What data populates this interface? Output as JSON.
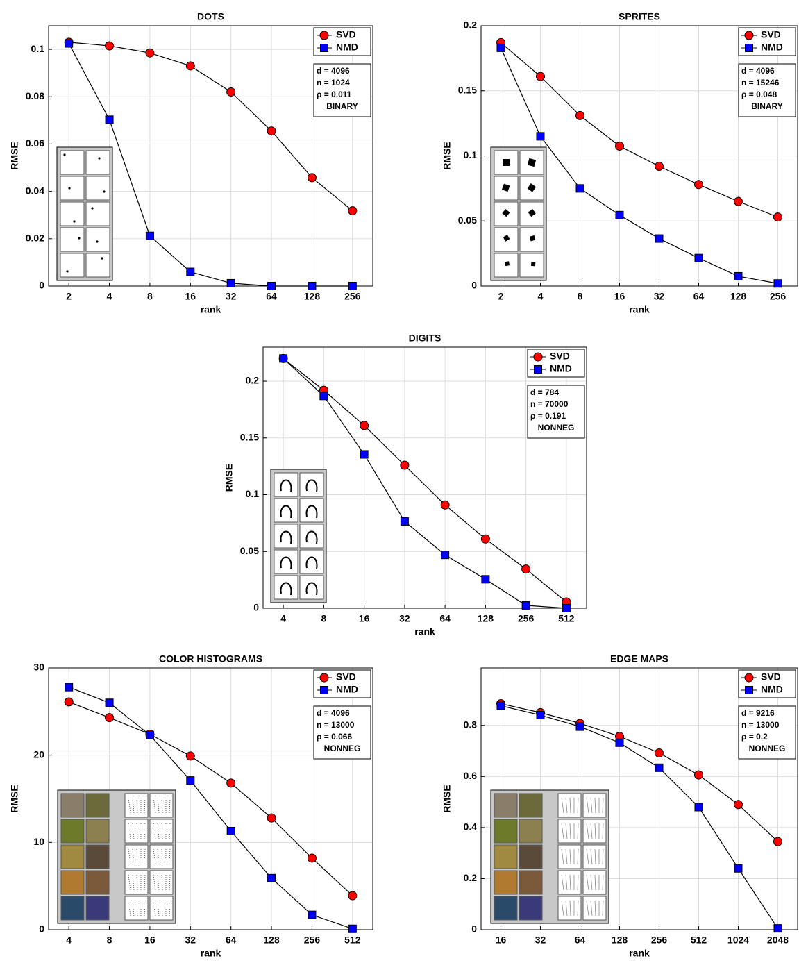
{
  "chart_data": [
    {
      "type": "line",
      "title": "DOTS",
      "xlabel": "rank",
      "ylabel": "RMSE",
      "categories": [
        "2",
        "4",
        "8",
        "16",
        "32",
        "64",
        "128",
        "256"
      ],
      "series": [
        {
          "name": "SVD",
          "color": "#ff0000",
          "marker": "circle",
          "values": [
            0.103,
            0.1015,
            0.0985,
            0.093,
            0.082,
            0.0655,
            0.0458,
            0.0318
          ]
        },
        {
          "name": "NMD",
          "color": "#0000ff",
          "marker": "square",
          "values": [
            0.1025,
            0.0703,
            0.0212,
            0.006,
            0.0012,
            0,
            0,
            0
          ]
        }
      ],
      "ylim": [
        0,
        0.11
      ],
      "yticks": [
        0,
        0.02,
        0.04,
        0.06,
        0.08,
        0.1
      ],
      "grid": true,
      "legend": "upper-right",
      "annotations": [
        "d = 4096",
        "n = 1024",
        "ρ = 0.011",
        "BINARY"
      ],
      "annotation_colors": [
        "#000000",
        "#000000",
        "#000000",
        "#800080"
      ]
    },
    {
      "type": "line",
      "title": "SPRITES",
      "xlabel": "rank",
      "ylabel": "RMSE",
      "categories": [
        "2",
        "4",
        "8",
        "16",
        "32",
        "64",
        "128",
        "256"
      ],
      "series": [
        {
          "name": "SVD",
          "color": "#ff0000",
          "marker": "circle",
          "values": [
            0.187,
            0.161,
            0.131,
            0.1075,
            0.092,
            0.078,
            0.065,
            0.053
          ]
        },
        {
          "name": "NMD",
          "color": "#0000ff",
          "marker": "square",
          "values": [
            0.183,
            0.115,
            0.075,
            0.0545,
            0.0365,
            0.0215,
            0.0075,
            0.002
          ]
        }
      ],
      "ylim": [
        0,
        0.2
      ],
      "yticks": [
        0,
        0.05,
        0.1,
        0.15,
        0.2
      ],
      "grid": true,
      "legend": "upper-right",
      "annotations": [
        "d = 4096",
        "n = 15246",
        "ρ = 0.048",
        "BINARY"
      ],
      "annotation_colors": [
        "#000000",
        "#000000",
        "#000000",
        "#800080"
      ]
    },
    {
      "type": "line",
      "title": "DIGITS",
      "xlabel": "rank",
      "ylabel": "RMSE",
      "categories": [
        "4",
        "8",
        "16",
        "32",
        "64",
        "128",
        "256",
        "512"
      ],
      "series": [
        {
          "name": "SVD",
          "color": "#ff0000",
          "marker": "circle",
          "values": [
            0.22,
            0.192,
            0.161,
            0.126,
            0.091,
            0.061,
            0.0345,
            0.0055
          ]
        },
        {
          "name": "NMD",
          "color": "#0000ff",
          "marker": "square",
          "values": [
            0.22,
            0.187,
            0.1355,
            0.0765,
            0.047,
            0.0255,
            0.0025,
            0
          ]
        }
      ],
      "ylim": [
        0,
        0.23
      ],
      "yticks": [
        0,
        0.05,
        0.1,
        0.15,
        0.2
      ],
      "grid": true,
      "legend": "upper-right",
      "annotations": [
        "d = 784",
        "n = 70000",
        "ρ = 0.191",
        "NONNEG"
      ],
      "annotation_colors": [
        "#000000",
        "#000000",
        "#000000",
        "#800080"
      ]
    },
    {
      "type": "line",
      "title": "COLOR HISTOGRAMS",
      "xlabel": "rank",
      "ylabel": "RMSE",
      "categories": [
        "4",
        "8",
        "16",
        "32",
        "64",
        "128",
        "256",
        "512"
      ],
      "series": [
        {
          "name": "SVD",
          "color": "#ff0000",
          "marker": "circle",
          "values": [
            26.1,
            24.3,
            22.4,
            19.9,
            16.8,
            12.8,
            8.2,
            3.9
          ]
        },
        {
          "name": "NMD",
          "color": "#0000ff",
          "marker": "square",
          "values": [
            27.8,
            26.0,
            22.3,
            17.1,
            11.3,
            5.9,
            1.7,
            0.1
          ]
        }
      ],
      "ylim": [
        0,
        30
      ],
      "yticks": [
        0,
        10,
        20,
        30
      ],
      "grid": true,
      "legend": "upper-right",
      "annotations": [
        "d = 4096",
        "n = 13000",
        "ρ = 0.066",
        "NONNEG"
      ],
      "annotation_colors": [
        "#000000",
        "#000000",
        "#000000",
        "#800080"
      ]
    },
    {
      "type": "line",
      "title": "EDGE MAPS",
      "xlabel": "rank",
      "ylabel": "RMSE",
      "categories": [
        "16",
        "32",
        "64",
        "128",
        "256",
        "512",
        "1024",
        "2048"
      ],
      "series": [
        {
          "name": "SVD",
          "color": "#ff0000",
          "marker": "circle",
          "values": [
            0.885,
            0.85,
            0.808,
            0.757,
            0.692,
            0.606,
            0.49,
            0.345
          ]
        },
        {
          "name": "NMD",
          "color": "#0000ff",
          "marker": "square",
          "values": [
            0.877,
            0.84,
            0.795,
            0.732,
            0.634,
            0.48,
            0.24,
            0.005
          ]
        }
      ],
      "ylim": [
        0,
        1.025
      ],
      "yticks": [
        0,
        0.2,
        0.4,
        0.6,
        0.8
      ],
      "grid": true,
      "legend": "upper-right",
      "annotations": [
        "d = 9216",
        "n = 13000",
        "ρ = 0.2",
        "NONNEG"
      ],
      "annotation_colors": [
        "#000000",
        "#000000",
        "#000000",
        "#800080"
      ]
    }
  ]
}
